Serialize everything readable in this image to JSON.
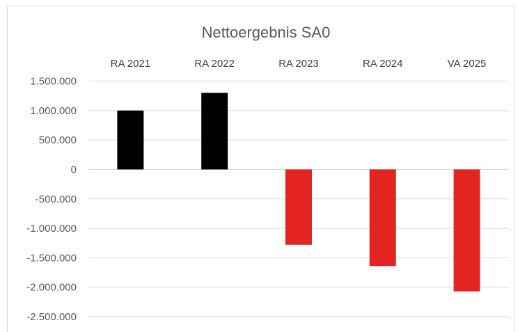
{
  "chart_data": {
    "type": "bar",
    "title": "Nettoergebnis SA0",
    "categories": [
      "RA 2021",
      "RA 2022",
      "RA 2023",
      "RA 2024",
      "VA 2025"
    ],
    "values": [
      1000000,
      1300000,
      -1280000,
      -1640000,
      -2070000
    ],
    "ylim": [
      -2500000,
      1500000
    ],
    "yticks": [
      1500000,
      1000000,
      500000,
      0,
      -500000,
      -1000000,
      -1500000,
      -2000000,
      -2500000
    ],
    "ytick_labels": [
      "1.500.000",
      "1.000.000",
      "500.000",
      "0",
      "-500.000",
      "-1.000.000",
      "-1.500.000",
      "-2.000.000",
      "-2.500.000"
    ],
    "xlabel": "",
    "ylabel": "",
    "category_labels_position": "top",
    "grid": true,
    "legend": "none",
    "colors": {
      "positive": "#000000",
      "negative": "#e32421",
      "grid": "#d9d9d9"
    }
  }
}
